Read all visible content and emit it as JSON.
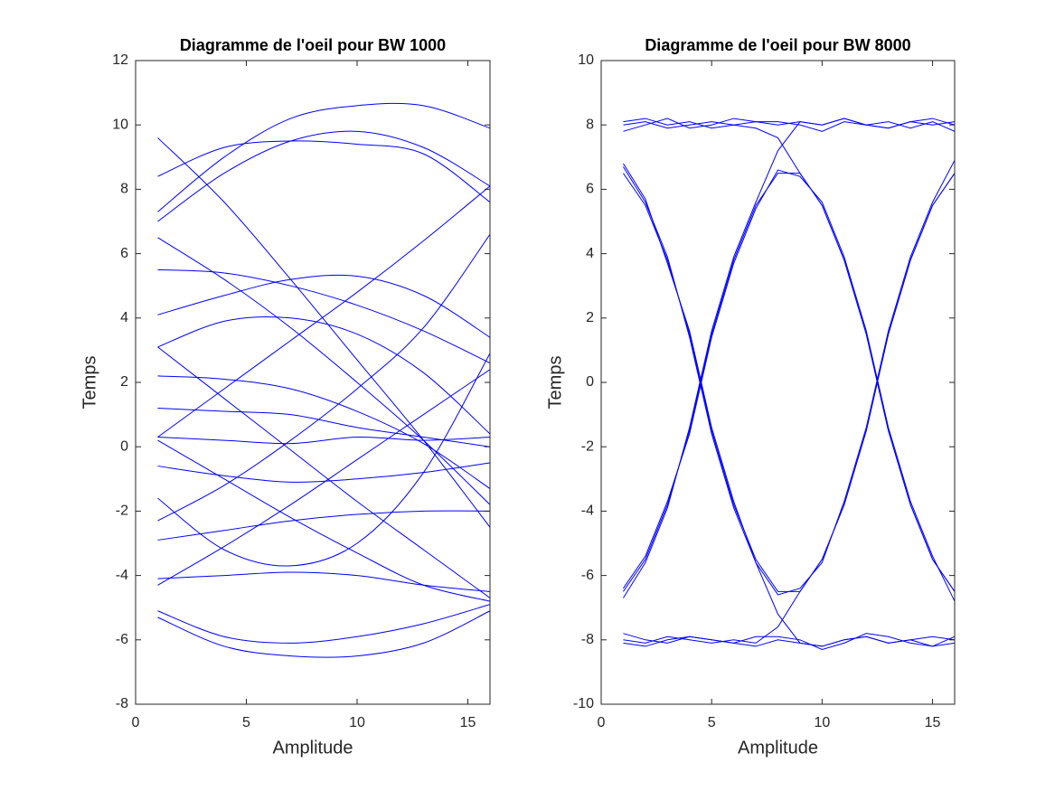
{
  "chart_data": [
    {
      "type": "line",
      "title": "Diagramme de l'oeil pour BW 1000",
      "x_label": "Amplitude",
      "y_label": "Temps",
      "x": [
        1,
        4,
        7,
        10,
        13,
        16
      ],
      "xlim": [
        0,
        16
      ],
      "xticks": [
        0,
        5,
        10,
        15
      ],
      "ylim": [
        -8,
        12
      ],
      "yticks": [
        -8,
        -6,
        -4,
        -2,
        0,
        2,
        4,
        6,
        8,
        10,
        12
      ],
      "grid": false,
      "series": [
        {
          "color": "#0000ff",
          "values": [
            9.6,
            7.6,
            5.2,
            2.7,
            0.2,
            -2.5
          ]
        },
        {
          "color": "#0000ff",
          "values": [
            8.4,
            9.3,
            9.5,
            9.4,
            9.1,
            7.6
          ]
        },
        {
          "color": "#0000ff",
          "values": [
            7.3,
            9.0,
            10.2,
            10.6,
            10.6,
            9.9
          ]
        },
        {
          "color": "#0000ff",
          "values": [
            7.0,
            8.5,
            9.5,
            9.8,
            9.3,
            8.1
          ]
        },
        {
          "color": "#0000ff",
          "values": [
            6.5,
            5.2,
            3.7,
            2.0,
            0.2,
            -1.8
          ]
        },
        {
          "color": "#0000ff",
          "values": [
            5.5,
            5.4,
            5.0,
            4.4,
            3.6,
            2.6
          ]
        },
        {
          "color": "#0000ff",
          "values": [
            4.1,
            4.7,
            5.2,
            5.3,
            4.7,
            3.4
          ]
        },
        {
          "color": "#0000ff",
          "values": [
            3.1,
            3.9,
            4.0,
            3.5,
            2.3,
            0.4
          ]
        },
        {
          "color": "#0000ff",
          "values": [
            0.3,
            1.8,
            3.3,
            4.8,
            6.4,
            8.1
          ]
        },
        {
          "color": "#0000ff",
          "values": [
            2.2,
            2.1,
            1.8,
            1.1,
            0.1,
            -1.3
          ]
        },
        {
          "color": "#0000ff",
          "values": [
            1.2,
            1.1,
            1.0,
            0.6,
            0.3,
            0.0
          ]
        },
        {
          "color": "#0000ff",
          "values": [
            0.3,
            0.2,
            0.1,
            0.3,
            0.2,
            0.3
          ]
        },
        {
          "color": "#0000ff",
          "values": [
            -0.6,
            -0.9,
            -1.1,
            -1.0,
            -0.8,
            -0.5
          ]
        },
        {
          "color": "#0000ff",
          "values": [
            -1.6,
            -3.2,
            -3.7,
            -3.0,
            -0.8,
            2.9
          ]
        },
        {
          "color": "#0000ff",
          "values": [
            -2.3,
            -1.2,
            0.2,
            1.8,
            3.7,
            6.6
          ]
        },
        {
          "color": "#0000ff",
          "values": [
            -2.9,
            -2.6,
            -2.3,
            -2.1,
            -2.0,
            -2.0
          ]
        },
        {
          "color": "#0000ff",
          "values": [
            -4.1,
            -4.0,
            -3.9,
            -4.0,
            -4.3,
            -4.5
          ]
        },
        {
          "color": "#0000ff",
          "values": [
            -4.3,
            -3.1,
            -1.8,
            -0.4,
            1.0,
            2.4
          ]
        },
        {
          "color": "#0000ff",
          "values": [
            -5.1,
            -5.9,
            -6.1,
            -5.9,
            -5.5,
            -4.9
          ]
        },
        {
          "color": "#0000ff",
          "values": [
            -5.3,
            -6.2,
            -6.5,
            -6.5,
            -6.1,
            -5.1
          ]
        },
        {
          "color": "#0000ff",
          "values": [
            3.1,
            1.5,
            -0.1,
            -1.7,
            -3.2,
            -4.7
          ]
        },
        {
          "color": "#0000ff",
          "values": [
            0.2,
            -1.0,
            -2.2,
            -3.3,
            -4.3,
            -4.8
          ]
        }
      ]
    },
    {
      "type": "line",
      "title": "Diagramme de l'oeil pour BW 8000",
      "x_label": "Amplitude",
      "y_label": "Temps",
      "x": [
        1,
        2,
        3,
        4,
        5,
        6,
        7,
        8,
        9,
        10,
        11,
        12,
        13,
        14,
        15,
        16
      ],
      "xlim": [
        0,
        16
      ],
      "xticks": [
        0,
        5,
        10,
        15
      ],
      "ylim": [
        -10,
        10
      ],
      "yticks": [
        -10,
        -8,
        -6,
        -4,
        -2,
        0,
        2,
        4,
        6,
        8,
        10
      ],
      "grid": false,
      "series": [
        {
          "color": "#0000ff",
          "values": [
            6.5,
            5.5,
            3.8,
            1.5,
            -1.5,
            -3.8,
            -5.5,
            -6.5,
            -6.5,
            -5.5,
            -3.8,
            -1.5,
            1.5,
            3.8,
            5.5,
            6.5
          ]
        },
        {
          "color": "#0000ff",
          "values": [
            -6.5,
            -5.5,
            -3.8,
            -1.5,
            1.5,
            3.8,
            5.5,
            6.5,
            6.5,
            5.5,
            3.8,
            1.5,
            -1.5,
            -3.8,
            -5.5,
            -6.5
          ]
        },
        {
          "color": "#0000ff",
          "values": [
            8.1,
            8.2,
            8.0,
            8.1,
            7.9,
            8.0,
            8.1,
            8.0,
            8.1,
            8.0,
            8.2,
            8.0,
            7.9,
            8.1,
            8.0,
            8.1
          ]
        },
        {
          "color": "#0000ff",
          "values": [
            -8.1,
            -8.2,
            -8.0,
            -7.9,
            -8.0,
            -8.1,
            -8.2,
            -8.0,
            -8.1,
            -8.2,
            -8.0,
            -7.9,
            -8.1,
            -8.0,
            -8.2,
            -8.1
          ]
        },
        {
          "color": "#0000ff",
          "values": [
            8.0,
            8.1,
            7.9,
            8.0,
            8.1,
            8.0,
            7.9,
            7.6,
            6.5,
            5.5,
            3.8,
            1.5,
            -1.5,
            -3.8,
            -5.5,
            -6.5
          ]
        },
        {
          "color": "#0000ff",
          "values": [
            -8.0,
            -8.1,
            -7.9,
            -8.0,
            -8.1,
            -8.0,
            -8.1,
            -7.6,
            -6.5,
            -5.5,
            -3.8,
            -1.5,
            1.5,
            3.8,
            5.5,
            6.5
          ]
        },
        {
          "color": "#0000ff",
          "values": [
            6.7,
            5.6,
            3.9,
            1.4,
            -1.6,
            -3.9,
            -5.6,
            -7.2,
            -8.1,
            -8.2,
            -8.0,
            -7.9,
            -8.1,
            -8.0,
            -7.9,
            -8.0
          ]
        },
        {
          "color": "#0000ff",
          "values": [
            -6.7,
            -5.6,
            -3.9,
            -1.4,
            1.6,
            3.9,
            5.6,
            7.2,
            8.1,
            8.0,
            8.2,
            8.0,
            7.9,
            8.1,
            8.2,
            8.0
          ]
        },
        {
          "color": "#0000ff",
          "values": [
            -6.4,
            -5.4,
            -3.7,
            -1.6,
            1.4,
            3.7,
            5.4,
            6.6,
            6.4,
            5.6,
            3.9,
            1.6,
            -1.4,
            -3.7,
            -5.4,
            -6.8
          ]
        },
        {
          "color": "#0000ff",
          "values": [
            6.8,
            5.7,
            3.7,
            1.6,
            -1.4,
            -3.7,
            -5.6,
            -6.6,
            -6.4,
            -5.6,
            -3.7,
            -1.4,
            1.6,
            3.9,
            5.6,
            6.9
          ]
        },
        {
          "color": "#0000ff",
          "values": [
            7.8,
            8.0,
            8.2,
            7.9,
            8.0,
            8.2,
            8.1,
            8.1,
            8.0,
            7.8,
            8.1,
            8.0,
            8.1,
            7.9,
            8.1,
            7.8
          ]
        },
        {
          "color": "#0000ff",
          "values": [
            -7.8,
            -8.0,
            -8.1,
            -7.9,
            -8.0,
            -8.1,
            -7.9,
            -7.9,
            -8.0,
            -8.3,
            -8.1,
            -7.8,
            -7.9,
            -8.1,
            -8.2,
            -7.9
          ]
        }
      ]
    }
  ]
}
